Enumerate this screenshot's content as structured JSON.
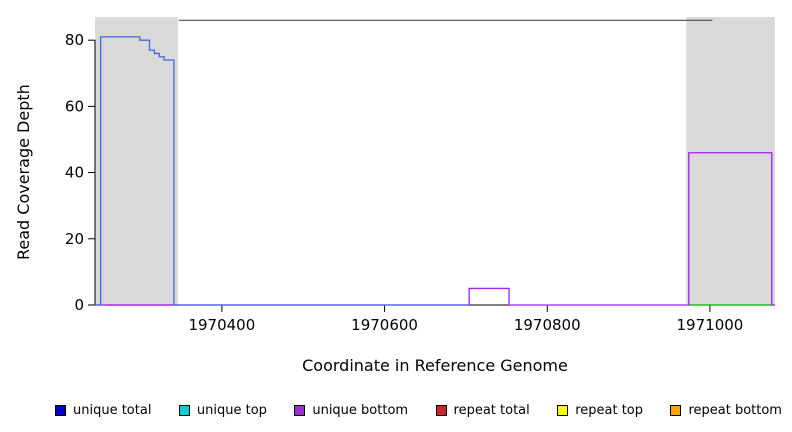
{
  "chart_data": {
    "type": "line",
    "title": "",
    "xlabel": "Coordinate in Reference Genome",
    "ylabel": "Read Coverage Depth",
    "xlim": [
      1970244,
      1971080
    ],
    "ylim": [
      0,
      87
    ],
    "x_ticks": [
      1970400,
      1970600,
      1970800,
      1971000
    ],
    "y_ticks": [
      0,
      20,
      40,
      60,
      80
    ],
    "grid": false,
    "background": "#ffffff",
    "shaded_regions": [
      {
        "name": "shaded-region-left",
        "x0": 1970244,
        "x1": 1970346,
        "color": "#d9d9d9"
      },
      {
        "name": "shaded-region-right",
        "x0": 1970971,
        "x1": 1971080,
        "color": "#d9d9d9"
      }
    ],
    "series": [
      {
        "name": "top-boundary",
        "color": "#4d4d4d",
        "width": 1.2,
        "points": [
          [
            1970347,
            86
          ],
          [
            1971003,
            86
          ]
        ]
      },
      {
        "name": "repeat-total",
        "color": "#E03030",
        "width": 1.2,
        "points": [
          [
            1970258,
            0
          ],
          [
            1970346,
            0
          ]
        ]
      },
      {
        "name": "green-baseline",
        "color": "#00B200",
        "width": 1.2,
        "points": [
          [
            1970974,
            0
          ],
          [
            1971080,
            0
          ]
        ]
      },
      {
        "name": "unique-bottom",
        "color": "#A020F0",
        "width": 1.3,
        "points": [
          [
            1970244,
            0
          ],
          [
            1970704,
            0
          ],
          [
            1970704,
            5
          ],
          [
            1970753,
            5
          ],
          [
            1970753,
            0
          ],
          [
            1970974,
            0
          ],
          [
            1970974,
            46
          ],
          [
            1971076,
            46
          ],
          [
            1971076,
            0
          ],
          [
            1971080,
            0
          ]
        ]
      },
      {
        "name": "unique-total",
        "color": "#4169E1",
        "width": 1.3,
        "points": [
          [
            1970244,
            0
          ],
          [
            1970251,
            0
          ],
          [
            1970251,
            81
          ],
          [
            1970299,
            81
          ],
          [
            1970299,
            80
          ],
          [
            1970311,
            80
          ],
          [
            1970311,
            77
          ],
          [
            1970317,
            77
          ],
          [
            1970317,
            76
          ],
          [
            1970323,
            76
          ],
          [
            1970323,
            75
          ],
          [
            1970329,
            75
          ],
          [
            1970329,
            74
          ],
          [
            1970341,
            74
          ],
          [
            1970341,
            0
          ],
          [
            1970704,
            0
          ]
        ]
      }
    ],
    "legend": [
      {
        "label": "unique total",
        "color": "#0000CD"
      },
      {
        "label": "unique top",
        "color": "#00CED1"
      },
      {
        "label": "unique bottom",
        "color": "#9932CC"
      },
      {
        "label": "repeat total",
        "color": "#CD2626"
      },
      {
        "label": "repeat top",
        "color": "#FFFF00"
      },
      {
        "label": "repeat bottom",
        "color": "#FFA500"
      }
    ]
  }
}
